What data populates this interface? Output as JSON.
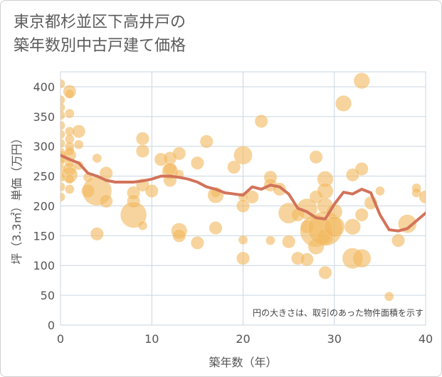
{
  "title_lines": [
    "東京都杉並区下高井戸の",
    "築年数別中古戸建て価格"
  ],
  "chart_data": {
    "type": "scatter",
    "title": "東京都杉並区下高井戸の築年数別中古戸建て価格",
    "xlabel": "築年数（年）",
    "ylabel": "坪（3.3㎡）単価（万円）",
    "xlim": [
      0,
      40
    ],
    "ylim": [
      0,
      425
    ],
    "xticks": [
      0,
      10,
      20,
      30,
      40
    ],
    "yticks": [
      0,
      50,
      100,
      150,
      200,
      250,
      300,
      350,
      400
    ],
    "grid": true,
    "note": "円の大きさは、取引のあった物件面積を示す",
    "colors": {
      "bubble": "#f2b85c",
      "line": "#d2735a",
      "grid": "#c9d6e2"
    },
    "series": [
      {
        "name": "取引事例",
        "type": "bubble",
        "points": [
          {
            "x": 0,
            "y": 405,
            "s": 1
          },
          {
            "x": 0,
            "y": 378,
            "s": 1
          },
          {
            "x": 0,
            "y": 365,
            "s": 1
          },
          {
            "x": 0,
            "y": 352,
            "s": 1
          },
          {
            "x": 0,
            "y": 335,
            "s": 1
          },
          {
            "x": 0,
            "y": 320,
            "s": 1
          },
          {
            "x": 0,
            "y": 305,
            "s": 1
          },
          {
            "x": 0,
            "y": 290,
            "s": 1
          },
          {
            "x": 0,
            "y": 275,
            "s": 1
          },
          {
            "x": 0,
            "y": 262,
            "s": 1
          },
          {
            "x": 0,
            "y": 248,
            "s": 1
          },
          {
            "x": 0,
            "y": 232,
            "s": 1
          },
          {
            "x": 0,
            "y": 215,
            "s": 1
          },
          {
            "x": 0,
            "y": 282,
            "s": 2
          },
          {
            "x": 1,
            "y": 392,
            "s": 2
          },
          {
            "x": 1,
            "y": 388,
            "s": 1
          },
          {
            "x": 1,
            "y": 355,
            "s": 1
          },
          {
            "x": 1,
            "y": 325,
            "s": 1
          },
          {
            "x": 1,
            "y": 312,
            "s": 1
          },
          {
            "x": 1,
            "y": 300,
            "s": 1
          },
          {
            "x": 1,
            "y": 285,
            "s": 2
          },
          {
            "x": 1,
            "y": 272,
            "s": 1
          },
          {
            "x": 1,
            "y": 262,
            "s": 2
          },
          {
            "x": 1,
            "y": 252,
            "s": 3
          },
          {
            "x": 1,
            "y": 245,
            "s": 1
          },
          {
            "x": 1,
            "y": 228,
            "s": 1
          },
          {
            "x": 1,
            "y": 292,
            "s": 1
          },
          {
            "x": 2,
            "y": 325,
            "s": 2
          },
          {
            "x": 2,
            "y": 303,
            "s": 1
          },
          {
            "x": 2,
            "y": 268,
            "s": 1
          },
          {
            "x": 3,
            "y": 248,
            "s": 1
          },
          {
            "x": 3,
            "y": 225,
            "s": 2
          },
          {
            "x": 4,
            "y": 280,
            "s": 1
          },
          {
            "x": 4,
            "y": 225,
            "s": 10
          },
          {
            "x": 4,
            "y": 153,
            "s": 2
          },
          {
            "x": 5,
            "y": 255,
            "s": 2
          },
          {
            "x": 5,
            "y": 208,
            "s": 2
          },
          {
            "x": 8,
            "y": 222,
            "s": 2
          },
          {
            "x": 8,
            "y": 208,
            "s": 2
          },
          {
            "x": 8,
            "y": 185,
            "s": 8
          },
          {
            "x": 9,
            "y": 313,
            "s": 2
          },
          {
            "x": 9,
            "y": 292,
            "s": 2
          },
          {
            "x": 9,
            "y": 235,
            "s": 2
          },
          {
            "x": 9,
            "y": 167,
            "s": 1
          },
          {
            "x": 10,
            "y": 225,
            "s": 2
          },
          {
            "x": 11,
            "y": 278,
            "s": 2
          },
          {
            "x": 12,
            "y": 280,
            "s": 2
          },
          {
            "x": 12,
            "y": 262,
            "s": 2
          },
          {
            "x": 12,
            "y": 258,
            "s": 3
          },
          {
            "x": 12,
            "y": 243,
            "s": 2
          },
          {
            "x": 13,
            "y": 288,
            "s": 2
          },
          {
            "x": 13,
            "y": 253,
            "s": 1
          },
          {
            "x": 13,
            "y": 158,
            "s": 3
          },
          {
            "x": 13,
            "y": 150,
            "s": 2
          },
          {
            "x": 15,
            "y": 272,
            "s": 2
          },
          {
            "x": 15,
            "y": 138,
            "s": 2
          },
          {
            "x": 16,
            "y": 308,
            "s": 2
          },
          {
            "x": 17,
            "y": 222,
            "s": 1
          },
          {
            "x": 17,
            "y": 218,
            "s": 3
          },
          {
            "x": 17,
            "y": 163,
            "s": 2
          },
          {
            "x": 19,
            "y": 265,
            "s": 2
          },
          {
            "x": 20,
            "y": 285,
            "s": 4
          },
          {
            "x": 20,
            "y": 215,
            "s": 1
          },
          {
            "x": 20,
            "y": 200,
            "s": 2
          },
          {
            "x": 20,
            "y": 143,
            "s": 1
          },
          {
            "x": 20,
            "y": 112,
            "s": 2
          },
          {
            "x": 21,
            "y": 215,
            "s": 2
          },
          {
            "x": 22,
            "y": 342,
            "s": 2
          },
          {
            "x": 23,
            "y": 248,
            "s": 2
          },
          {
            "x": 23,
            "y": 235,
            "s": 2
          },
          {
            "x": 23,
            "y": 142,
            "s": 1
          },
          {
            "x": 24,
            "y": 228,
            "s": 2
          },
          {
            "x": 25,
            "y": 188,
            "s": 5
          },
          {
            "x": 25,
            "y": 140,
            "s": 2
          },
          {
            "x": 26,
            "y": 185,
            "s": 2
          },
          {
            "x": 26,
            "y": 112,
            "s": 2
          },
          {
            "x": 27,
            "y": 195,
            "s": 5
          },
          {
            "x": 27,
            "y": 165,
            "s": 2
          },
          {
            "x": 27,
            "y": 110,
            "s": 2
          },
          {
            "x": 28,
            "y": 282,
            "s": 2
          },
          {
            "x": 28,
            "y": 215,
            "s": 2
          },
          {
            "x": 28,
            "y": 158,
            "s": 12
          },
          {
            "x": 28,
            "y": 132,
            "s": 3
          },
          {
            "x": 29,
            "y": 245,
            "s": 3
          },
          {
            "x": 29,
            "y": 225,
            "s": 3
          },
          {
            "x": 29,
            "y": 200,
            "s": 3
          },
          {
            "x": 29,
            "y": 148,
            "s": 3
          },
          {
            "x": 29,
            "y": 88,
            "s": 2
          },
          {
            "x": 29,
            "y": 162,
            "s": 14
          },
          {
            "x": 30,
            "y": 190,
            "s": 3
          },
          {
            "x": 30,
            "y": 165,
            "s": 5
          },
          {
            "x": 31,
            "y": 372,
            "s": 3
          },
          {
            "x": 32,
            "y": 252,
            "s": 2
          },
          {
            "x": 32,
            "y": 165,
            "s": 3
          },
          {
            "x": 32,
            "y": 112,
            "s": 5
          },
          {
            "x": 33,
            "y": 410,
            "s": 3
          },
          {
            "x": 33,
            "y": 262,
            "s": 2
          },
          {
            "x": 33,
            "y": 185,
            "s": 2
          },
          {
            "x": 33,
            "y": 112,
            "s": 4
          },
          {
            "x": 34,
            "y": 205,
            "s": 2
          },
          {
            "x": 35,
            "y": 225,
            "s": 1
          },
          {
            "x": 36,
            "y": 48,
            "s": 1
          },
          {
            "x": 37,
            "y": 142,
            "s": 2
          },
          {
            "x": 38,
            "y": 170,
            "s": 4
          },
          {
            "x": 39,
            "y": 230,
            "s": 1
          },
          {
            "x": 39,
            "y": 222,
            "s": 1
          },
          {
            "x": 40,
            "y": 215,
            "s": 2
          }
        ]
      },
      {
        "name": "平均",
        "type": "line",
        "x": [
          0,
          1,
          2,
          3,
          4,
          5,
          6,
          7,
          8,
          9,
          10,
          11,
          12,
          13,
          14,
          15,
          16,
          17,
          18,
          19,
          20,
          21,
          22,
          23,
          24,
          25,
          26,
          27,
          28,
          29,
          30,
          31,
          32,
          33,
          34,
          35,
          36,
          37,
          38,
          39,
          40
        ],
        "y": [
          285,
          278,
          272,
          255,
          250,
          243,
          240,
          240,
          240,
          242,
          245,
          250,
          250,
          248,
          245,
          240,
          232,
          228,
          222,
          220,
          218,
          232,
          228,
          235,
          232,
          220,
          196,
          190,
          180,
          178,
          203,
          223,
          220,
          228,
          222,
          185,
          160,
          158,
          162,
          175,
          188
        ]
      }
    ]
  }
}
